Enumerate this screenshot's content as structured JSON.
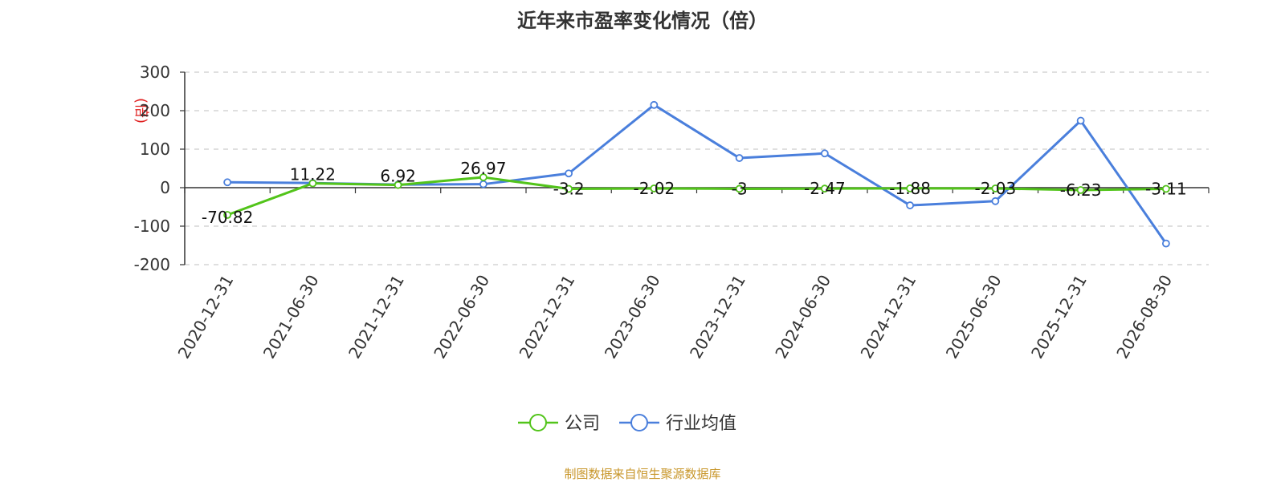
{
  "title": "近年来市盈率变化情况（倍）",
  "source": "制图数据来自恒生聚源数据库",
  "chart_data": {
    "type": "line",
    "title": "近年来市盈率变化情况（倍）",
    "ylabel": "(倍)",
    "xlabel": "",
    "ylim": [
      -200,
      300
    ],
    "yticks": [
      300,
      200,
      100,
      0,
      -100,
      -200
    ],
    "grid": true,
    "legend_position": "bottom-center",
    "categories": [
      "2020-12-31",
      "2021-06-30",
      "2021-12-31",
      "2022-06-30",
      "2022-12-31",
      "2023-06-30",
      "2023-12-31",
      "2024-06-30",
      "2024-12-31",
      "2025-06-30",
      "2025-12-31",
      "2026-08-30"
    ],
    "series": [
      {
        "name": "公司",
        "color": "#52c41a",
        "values": [
          -70.82,
          11.22,
          6.92,
          26.97,
          -3.2,
          -2.02,
          -3,
          -2.47,
          -1.88,
          -2.03,
          -6.23,
          -3.11
        ],
        "labels": [
          "-70.82",
          "11.22",
          "6.92",
          "26.97",
          "-3.2",
          "-2.02",
          "-3",
          "-2.47",
          "-1.88",
          "-2.03",
          "-6.23",
          "-3.11"
        ]
      },
      {
        "name": "行业均值",
        "color": "#4a7fdc",
        "values": [
          14,
          12,
          8,
          9,
          37,
          215,
          77,
          89,
          -46,
          -35,
          174,
          -145
        ]
      }
    ]
  }
}
